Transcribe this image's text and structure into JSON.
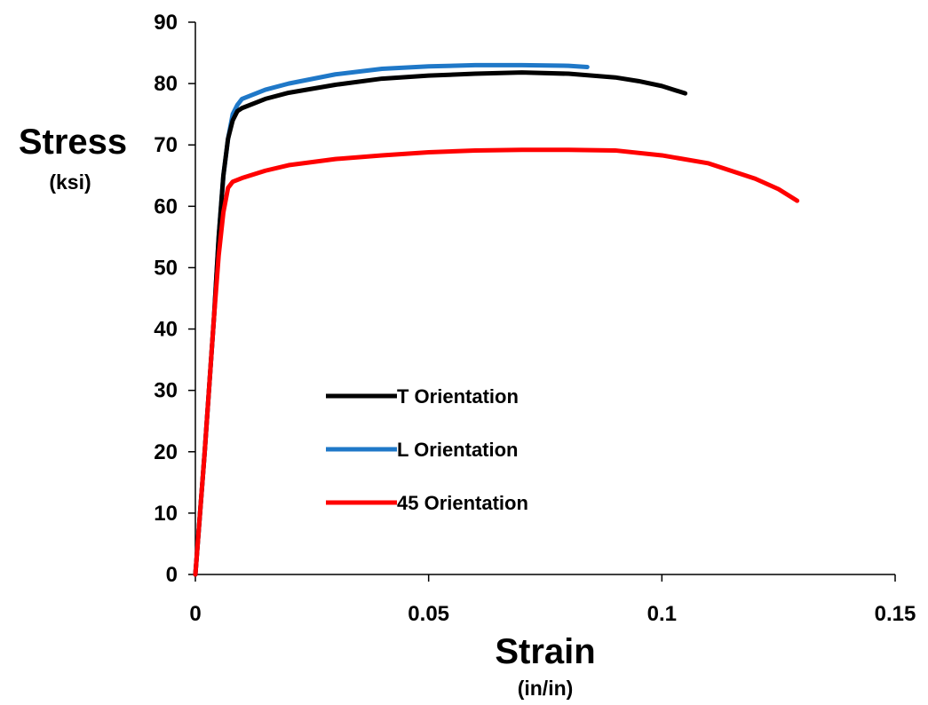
{
  "chart_data": {
    "type": "line",
    "title": "",
    "xlabel": "Strain",
    "xlabel_unit": "(in/in)",
    "ylabel": "Stress",
    "ylabel_unit": "(ksi)",
    "xlim": [
      0,
      0.15
    ],
    "ylim": [
      0,
      90
    ],
    "x_ticks": [
      0,
      0.05,
      0.1,
      0.15
    ],
    "x_tick_labels": [
      "0",
      "0.05",
      "0.1",
      "0.15"
    ],
    "y_ticks": [
      0,
      10,
      20,
      30,
      40,
      50,
      60,
      70,
      80,
      90
    ],
    "y_tick_labels": [
      "0",
      "10",
      "20",
      "30",
      "40",
      "50",
      "60",
      "70",
      "80",
      "90"
    ],
    "grid": false,
    "legend_position": "center-left",
    "series": [
      {
        "name": "T Orientation",
        "color": "#000000",
        "points": [
          [
            0,
            0
          ],
          [
            0.002,
            20
          ],
          [
            0.004,
            42
          ],
          [
            0.005,
            55
          ],
          [
            0.006,
            65
          ],
          [
            0.007,
            71
          ],
          [
            0.008,
            74
          ],
          [
            0.009,
            75.5
          ],
          [
            0.01,
            76
          ],
          [
            0.015,
            77.5
          ],
          [
            0.02,
            78.5
          ],
          [
            0.03,
            79.8
          ],
          [
            0.04,
            80.8
          ],
          [
            0.05,
            81.3
          ],
          [
            0.06,
            81.6
          ],
          [
            0.07,
            81.8
          ],
          [
            0.08,
            81.6
          ],
          [
            0.09,
            81
          ],
          [
            0.095,
            80.4
          ],
          [
            0.1,
            79.6
          ],
          [
            0.105,
            78.4
          ]
        ]
      },
      {
        "name": "L Orientation",
        "color": "#1f78c8",
        "points": [
          [
            0,
            0
          ],
          [
            0.002,
            20
          ],
          [
            0.004,
            42
          ],
          [
            0.005,
            55
          ],
          [
            0.006,
            65
          ],
          [
            0.007,
            71
          ],
          [
            0.008,
            75
          ],
          [
            0.009,
            76.5
          ],
          [
            0.01,
            77.5
          ],
          [
            0.015,
            79
          ],
          [
            0.02,
            80
          ],
          [
            0.03,
            81.5
          ],
          [
            0.04,
            82.4
          ],
          [
            0.05,
            82.8
          ],
          [
            0.06,
            83
          ],
          [
            0.07,
            83
          ],
          [
            0.08,
            82.9
          ],
          [
            0.084,
            82.7
          ]
        ]
      },
      {
        "name": "45 Orientation",
        "color": "#ff0000",
        "points": [
          [
            0,
            0
          ],
          [
            0.001,
            10
          ],
          [
            0.002,
            20
          ],
          [
            0.003,
            31
          ],
          [
            0.004,
            42
          ],
          [
            0.005,
            52
          ],
          [
            0.006,
            59
          ],
          [
            0.007,
            63
          ],
          [
            0.008,
            64
          ],
          [
            0.01,
            64.6
          ],
          [
            0.015,
            65.8
          ],
          [
            0.02,
            66.7
          ],
          [
            0.03,
            67.7
          ],
          [
            0.04,
            68.3
          ],
          [
            0.05,
            68.8
          ],
          [
            0.06,
            69.1
          ],
          [
            0.07,
            69.2
          ],
          [
            0.08,
            69.2
          ],
          [
            0.09,
            69.1
          ],
          [
            0.1,
            68.3
          ],
          [
            0.11,
            67
          ],
          [
            0.12,
            64.5
          ],
          [
            0.125,
            62.8
          ],
          [
            0.129,
            60.9
          ]
        ]
      }
    ]
  }
}
